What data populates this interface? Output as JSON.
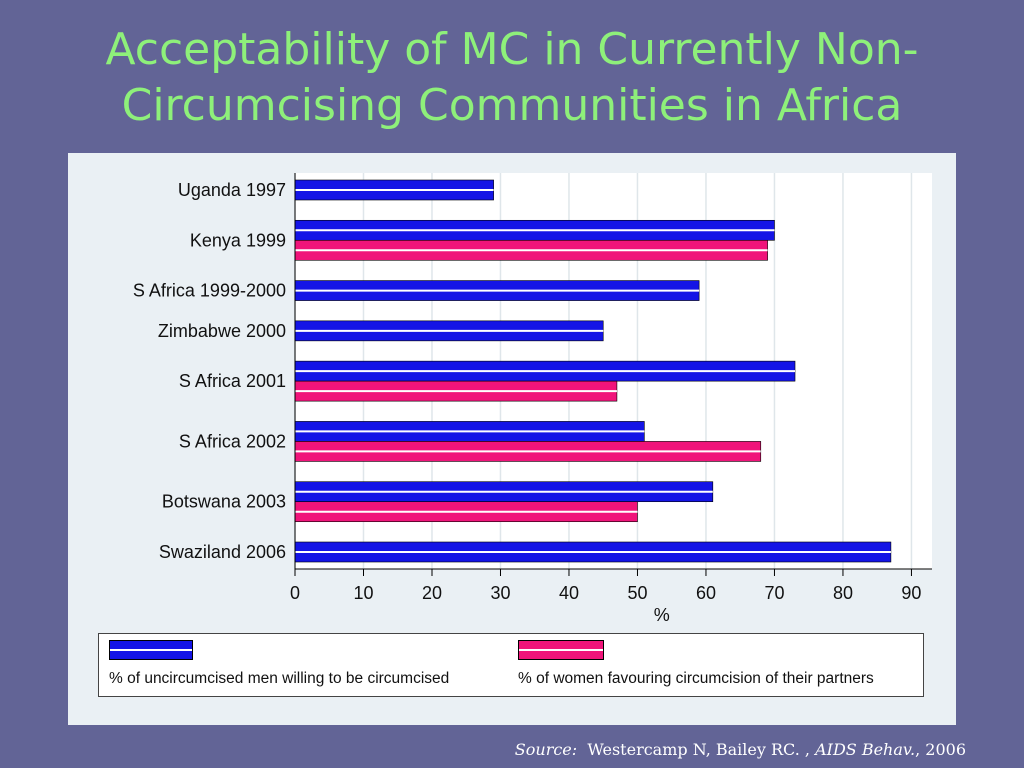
{
  "title_lines": [
    "Acceptability of MC in Currently Non-",
    "Circumcising Communities in Africa"
  ],
  "colors": {
    "background": "#626496",
    "title": "#8ef07a",
    "panel": "#eaf0f4",
    "men": "#1414e6",
    "women": "#f0147a"
  },
  "chart_data": {
    "type": "bar",
    "orientation": "horizontal",
    "categories": [
      "Uganda 1997",
      "Kenya 1999",
      "S Africa 1999-2000",
      "Zimbabwe 2000",
      "S Africa 2001",
      "S Africa 2002",
      "Botswana 2003",
      "Swaziland 2006"
    ],
    "series": [
      {
        "name": "% of uncircumcised men willing to be circumcised",
        "values": [
          29,
          70,
          59,
          45,
          73,
          51,
          61,
          87
        ]
      },
      {
        "name": "% of women favouring circumcision of their partners",
        "values": [
          null,
          69,
          null,
          null,
          47,
          68,
          50,
          null
        ]
      }
    ],
    "xlabel": "%",
    "xlim": [
      0,
      93
    ],
    "xticks": [
      0,
      10,
      20,
      30,
      40,
      50,
      60,
      70,
      80,
      90
    ],
    "grid": true,
    "legend_position": "bottom"
  },
  "source": {
    "label": "Source:",
    "authors": "Westercamp N, Bailey RC. ,",
    "journal": "AIDS Behav.",
    "year": ", 2006"
  }
}
